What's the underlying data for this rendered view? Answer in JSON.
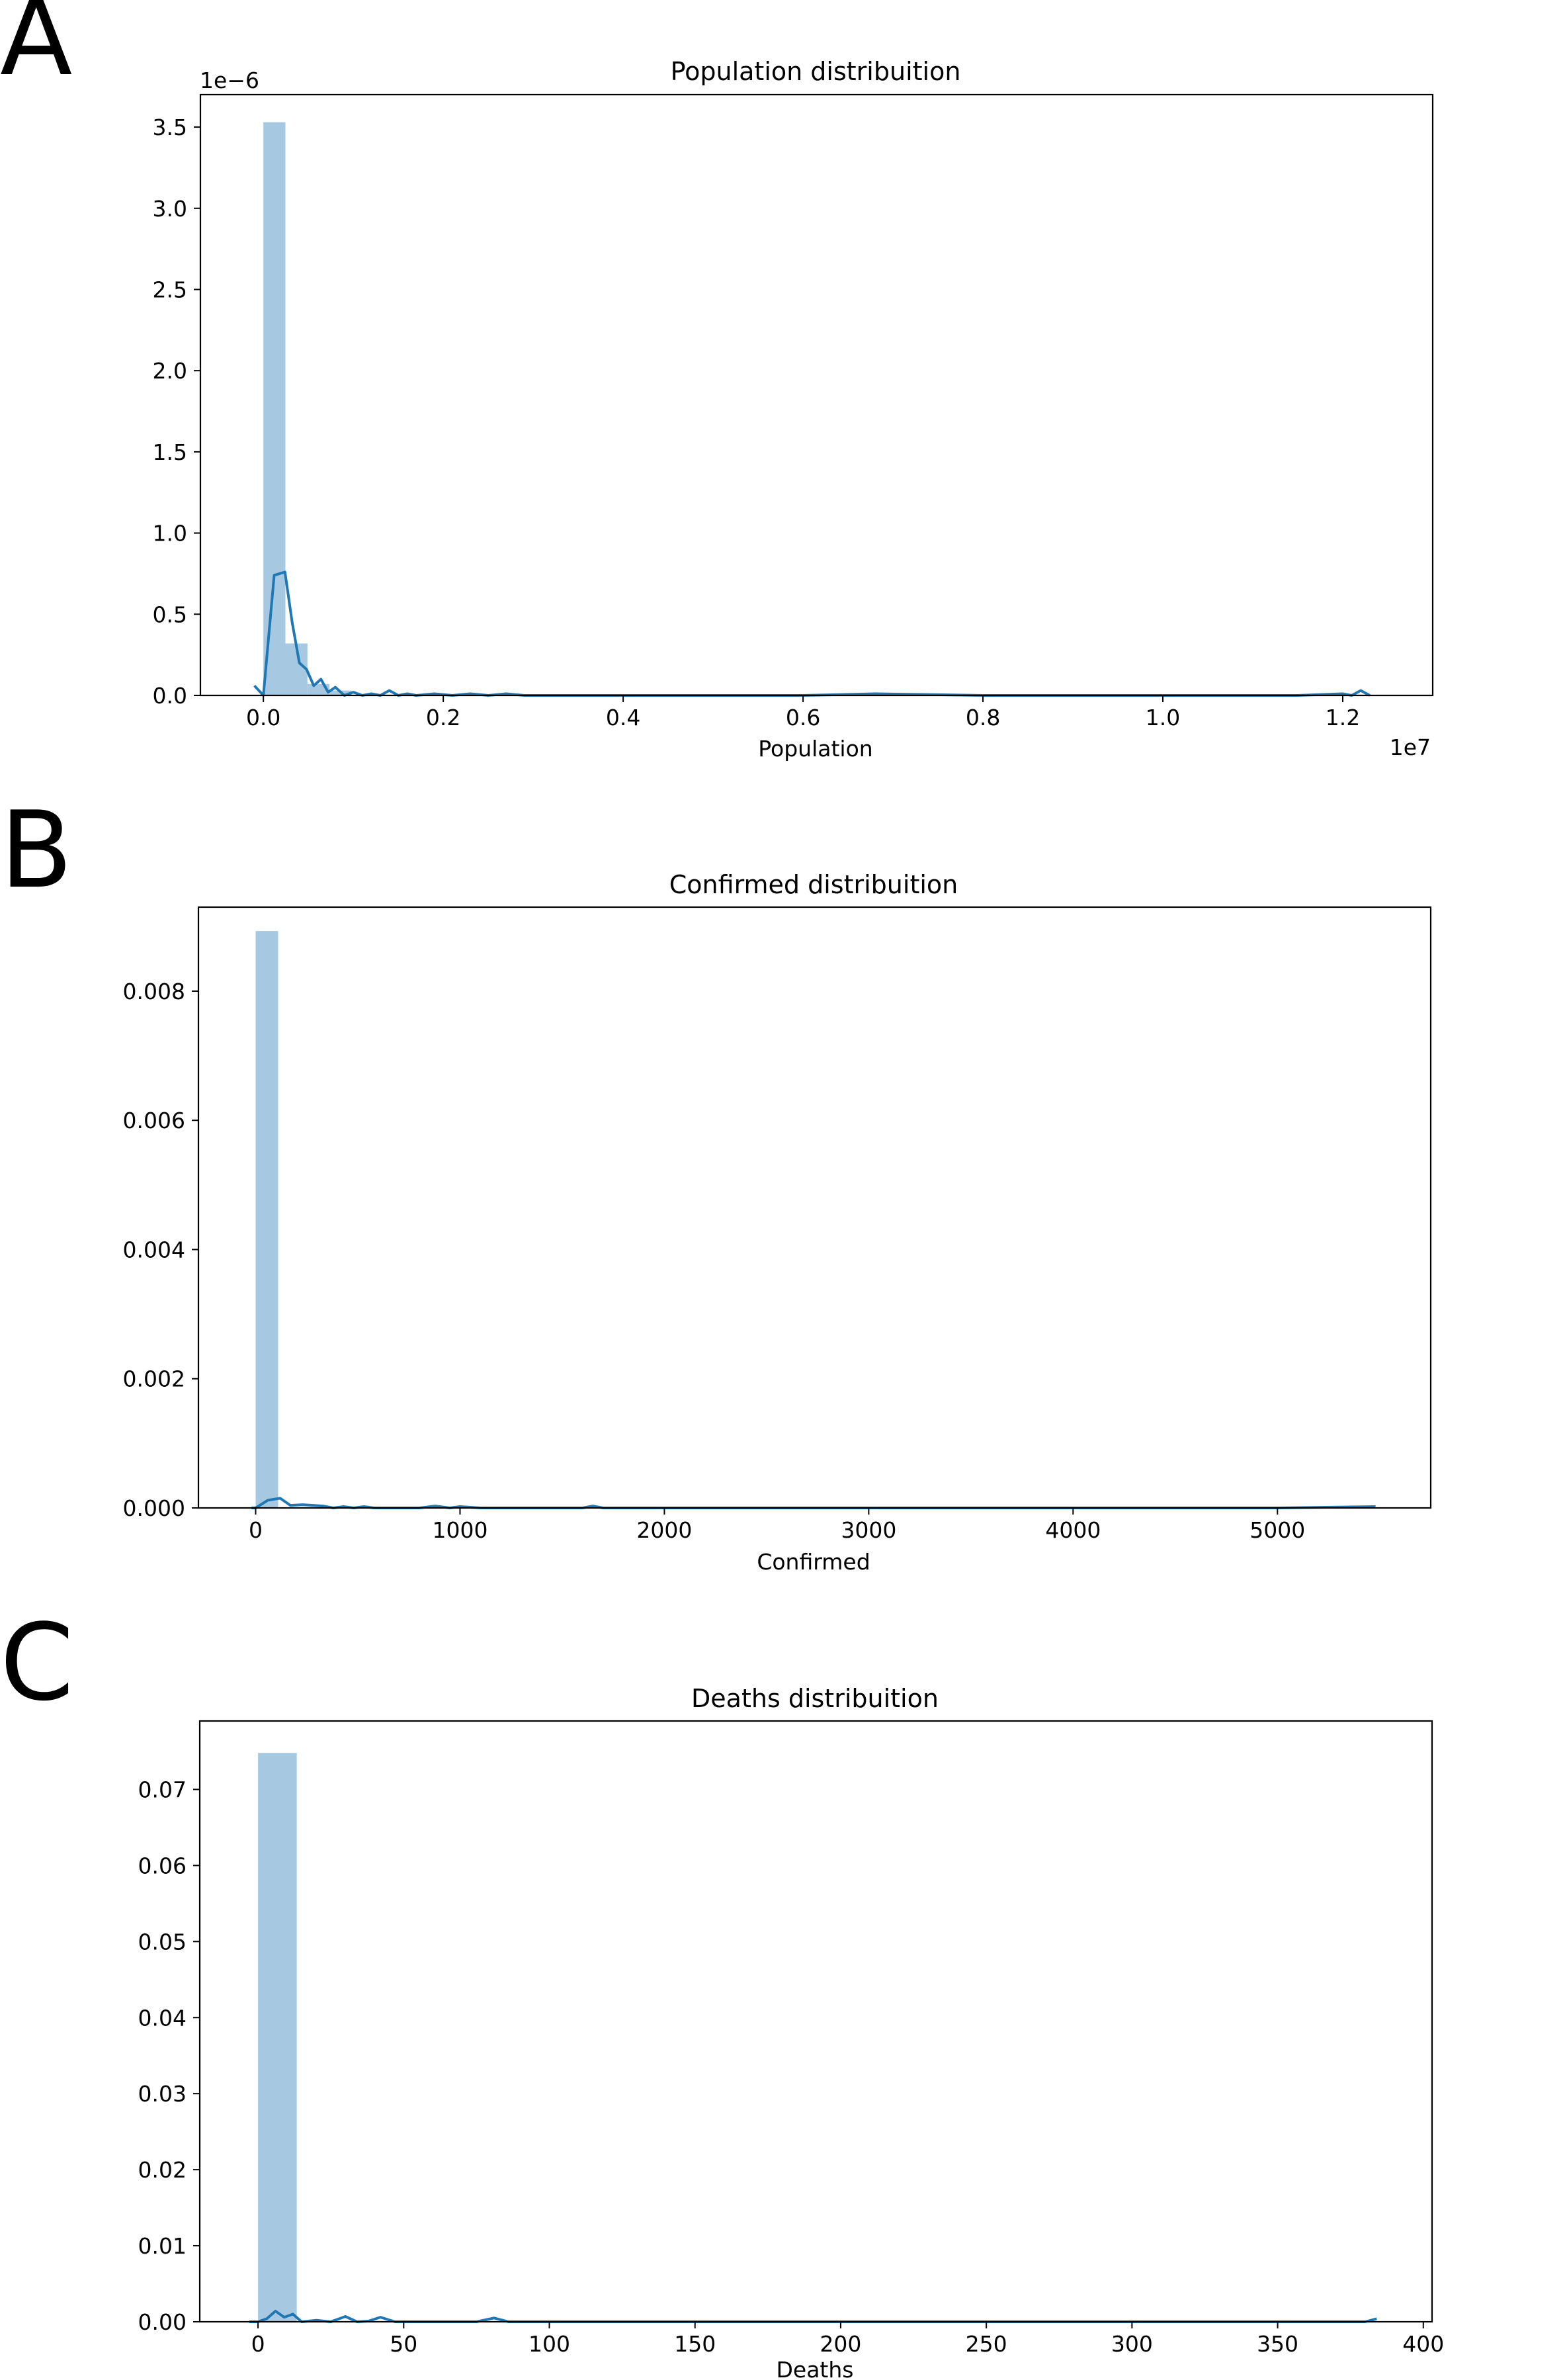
{
  "colors": {
    "bar": "#a6c9e1",
    "kde": "#1f77b4",
    "axis": "#000000"
  },
  "chart_data": [
    {
      "panel": "A",
      "type": "bar",
      "title": "Population distribuition",
      "xlabel": "Population",
      "ylabel": "",
      "x_offset_text": "1e7",
      "y_offset_text": "1e−6",
      "xlim": [
        -0.07,
        1.3
      ],
      "ylim": [
        0,
        3.7
      ],
      "xticks": [
        0.0,
        0.2,
        0.4,
        0.6,
        0.8,
        1.0,
        1.2
      ],
      "xtick_labels": [
        "0.0",
        "0.2",
        "0.4",
        "0.6",
        "0.8",
        "1.0",
        "1.2"
      ],
      "yticks": [
        0.0,
        0.5,
        1.0,
        1.5,
        2.0,
        2.5,
        3.0,
        3.5
      ],
      "ytick_labels": [
        "0.0",
        "0.5",
        "1.0",
        "1.5",
        "2.0",
        "2.5",
        "3.0",
        "3.5"
      ],
      "bins": [
        {
          "x0": 0.0,
          "x1": 0.0245,
          "height": 3.53
        },
        {
          "x0": 0.0245,
          "x1": 0.049,
          "height": 0.32
        },
        {
          "x0": 0.049,
          "x1": 0.0735,
          "height": 0.07
        },
        {
          "x0": 0.0735,
          "x1": 0.098,
          "height": 0.03
        }
      ],
      "kde": {
        "x": [
          -0.01,
          0.0,
          0.012,
          0.024,
          0.032,
          0.04,
          0.048,
          0.056,
          0.064,
          0.072,
          0.08,
          0.09,
          0.1,
          0.11,
          0.12,
          0.13,
          0.14,
          0.15,
          0.16,
          0.17,
          0.19,
          0.21,
          0.23,
          0.25,
          0.27,
          0.29,
          0.31,
          0.4,
          0.6,
          0.68,
          0.8,
          1.0,
          1.15,
          1.2,
          1.21,
          1.22,
          1.23
        ],
        "y": [
          0.06,
          0.0,
          0.74,
          0.76,
          0.45,
          0.2,
          0.16,
          0.06,
          0.1,
          0.02,
          0.05,
          0.0,
          0.02,
          0.0,
          0.01,
          0.0,
          0.03,
          0.0,
          0.01,
          0.0,
          0.01,
          0.0,
          0.01,
          0.0,
          0.01,
          0.0,
          0.0,
          0.0,
          0.0,
          0.01,
          0.0,
          0.0,
          0.0,
          0.01,
          0.0,
          0.03,
          0.0
        ]
      }
    },
    {
      "panel": "B",
      "type": "bar",
      "title": "Confirmed distribuition",
      "xlabel": "Confirmed",
      "ylabel": "",
      "xlim": [
        -280,
        5750
      ],
      "ylim": [
        0,
        0.0093
      ],
      "xticks": [
        0,
        1000,
        2000,
        3000,
        4000,
        5000
      ],
      "xtick_labels": [
        "0",
        "1000",
        "2000",
        "3000",
        "4000",
        "5000"
      ],
      "yticks": [
        0.0,
        0.002,
        0.004,
        0.006,
        0.008
      ],
      "ytick_labels": [
        "0.000",
        "0.002",
        "0.004",
        "0.006",
        "0.008"
      ],
      "bins": [
        {
          "x0": 0,
          "x1": 110,
          "height": 0.00893
        }
      ],
      "kde": {
        "x": [
          -20,
          0,
          60,
          120,
          170,
          230,
          280,
          330,
          380,
          430,
          480,
          530,
          580,
          700,
          800,
          880,
          950,
          1000,
          1100,
          1400,
          1600,
          1650,
          1700,
          2000,
          3000,
          4000,
          5000,
          5480
        ],
        "y": [
          0.0,
          0.0,
          0.00012,
          0.00015,
          4e-05,
          5e-05,
          4e-05,
          3e-05,
          0.0,
          2e-05,
          0.0,
          2e-05,
          0.0,
          0.0,
          0.0,
          3e-05,
          0.0,
          2e-05,
          0.0,
          0.0,
          0.0,
          3e-05,
          0.0,
          0.0,
          0.0,
          0.0,
          0.0,
          2e-05
        ]
      }
    },
    {
      "panel": "C",
      "type": "bar",
      "title": "Deaths distribuition",
      "xlabel": "Deaths",
      "ylabel": "",
      "xlim": [
        -20,
        403
      ],
      "ylim": [
        0,
        0.079
      ],
      "xticks": [
        0,
        50,
        100,
        150,
        200,
        250,
        300,
        350,
        400
      ],
      "xtick_labels": [
        "0",
        "50",
        "100",
        "150",
        "200",
        "250",
        "300",
        "350",
        "400"
      ],
      "yticks": [
        0.0,
        0.01,
        0.02,
        0.03,
        0.04,
        0.05,
        0.06,
        0.07
      ],
      "ytick_labels": [
        "0.00",
        "0.01",
        "0.02",
        "0.03",
        "0.04",
        "0.05",
        "0.06",
        "0.07"
      ],
      "bins": [
        {
          "x0": 0,
          "x1": 13.3,
          "height": 0.0748
        }
      ],
      "kde": {
        "x": [
          -3,
          0,
          3,
          6,
          9,
          12,
          15,
          20,
          25,
          30,
          34,
          38,
          42,
          47,
          52,
          75,
          81,
          86,
          100,
          200,
          300,
          380,
          384
        ],
        "y": [
          0.0,
          0.0,
          0.0004,
          0.0014,
          0.0006,
          0.001,
          0.0,
          0.0002,
          0.0,
          0.0007,
          0.0,
          0.0001,
          0.0006,
          0.0,
          0.0,
          0.0,
          0.0005,
          0.0,
          0.0,
          0.0,
          0.0,
          0.0,
          0.0004
        ]
      }
    }
  ]
}
